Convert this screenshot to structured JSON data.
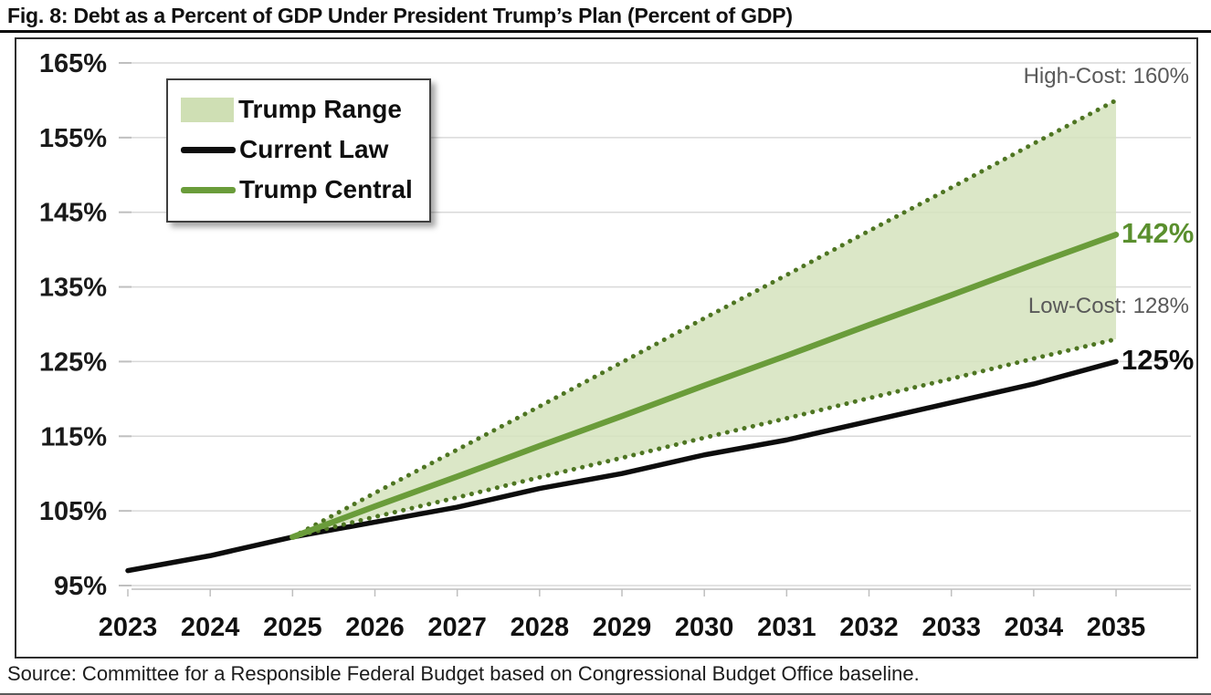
{
  "title": "Fig. 8: Debt as a Percent of GDP Under President Trump’s Plan (Percent of GDP)",
  "source": "Source: Committee for a Responsible Federal Budget based on Congressional Budget Office baseline.",
  "legend": {
    "position": "top-left",
    "items": [
      {
        "label": "Trump Range",
        "type": "area",
        "color": "#cfdfb4"
      },
      {
        "label": "Current Law",
        "type": "line",
        "color": "#0d0d0d"
      },
      {
        "label": "Trump Central",
        "type": "line",
        "color": "#6a9c3a"
      }
    ]
  },
  "annotations": {
    "high_cost": "High-Cost: 160%",
    "low_cost": "Low-Cost: 128%",
    "central_end": "142%",
    "current_law_end": "125%"
  },
  "colors": {
    "band_fill": "#d5e3bd",
    "central_line": "#6a9c3a",
    "dotted_line": "#4e7522",
    "current_law_line": "#0d0d0d",
    "green_label": "#5a8f2e",
    "gray_label": "#595959",
    "grid": "#d9d9d9",
    "axis": "#bfbfbf"
  },
  "chart_data": {
    "type": "line",
    "title": "Debt as a Percent of GDP Under President Trump's Plan",
    "xlabel": "",
    "ylabel": "Percent of GDP",
    "x": [
      2023,
      2024,
      2025,
      2026,
      2027,
      2028,
      2029,
      2030,
      2031,
      2032,
      2033,
      2034,
      2035
    ],
    "yticks": [
      95,
      105,
      115,
      125,
      135,
      145,
      155,
      165
    ],
    "ytick_suffix": "%",
    "ylim": [
      95,
      165
    ],
    "grid": "horizontal",
    "series": [
      {
        "name": "Current Law",
        "style": "solid",
        "color": "#0d0d0d",
        "values": [
          97,
          99,
          101.5,
          103.5,
          105.5,
          108,
          110,
          112.5,
          114.5,
          117,
          119.5,
          122,
          125
        ],
        "end_label": "125%"
      },
      {
        "name": "Trump Central",
        "style": "solid",
        "color": "#6a9c3a",
        "values": [
          null,
          null,
          101.5,
          105.6,
          109.6,
          113.7,
          117.7,
          121.8,
          125.8,
          129.9,
          133.9,
          138,
          142
        ],
        "end_label": "142%"
      },
      {
        "name": "High-Cost",
        "style": "dotted",
        "color": "#4e7522",
        "values": [
          null,
          null,
          101.5,
          107.4,
          113.2,
          119,
          124.9,
          130.8,
          136.6,
          142.5,
          148.3,
          154.2,
          160
        ],
        "end_label": "High-Cost: 160%"
      },
      {
        "name": "Low-Cost",
        "style": "dotted",
        "color": "#4e7522",
        "values": [
          null,
          null,
          101.5,
          104.2,
          106.8,
          109.5,
          112.1,
          114.8,
          117.4,
          120.1,
          122.7,
          125.4,
          128
        ],
        "end_label": "Low-Cost: 128%"
      }
    ],
    "band": {
      "label": "Trump Range",
      "between": [
        "Low-Cost",
        "High-Cost"
      ],
      "fill": "#d5e3bd"
    }
  }
}
